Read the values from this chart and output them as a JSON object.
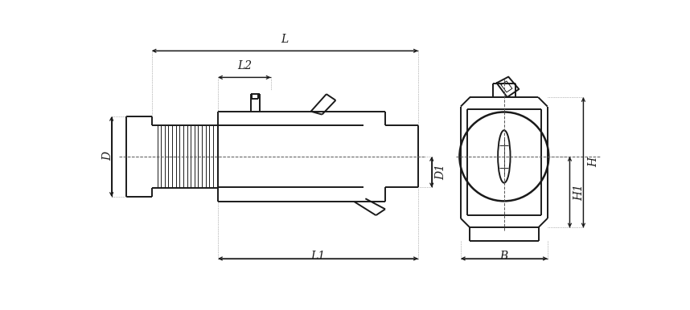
{
  "bg_color": "#ffffff",
  "lc": "#1a1a1a",
  "lw": 1.4,
  "lw_thin": 0.7,
  "lw_thick": 1.8,
  "lw_dim": 0.9,
  "labels": [
    "L",
    "L1",
    "L2",
    "D",
    "D1",
    "H",
    "H1",
    "B"
  ],
  "fig_w": 8.58,
  "fig_h": 3.86,
  "dpi": 100
}
